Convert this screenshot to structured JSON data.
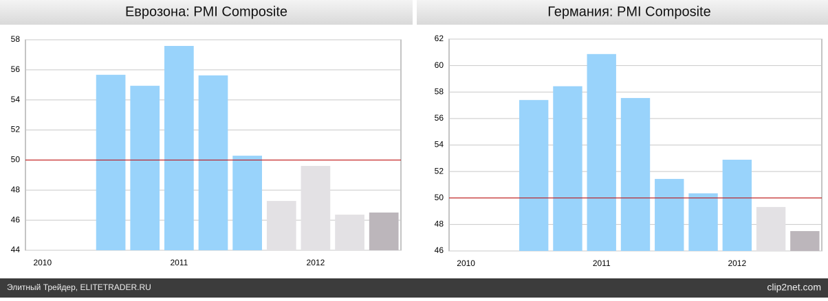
{
  "chart_data": [
    {
      "type": "bar",
      "title": "Еврозона: PMI Composite",
      "categories": [
        "2010",
        null,
        null,
        null,
        "2011",
        null,
        null,
        null,
        "2012",
        null,
        null
      ],
      "values": [
        null,
        null,
        55.67,
        54.94,
        57.59,
        55.63,
        50.29,
        47.28,
        49.61,
        46.37,
        46.51
      ],
      "colors": [
        "#99d3fb",
        "#99d3fb",
        "#99d3fb",
        "#99d3fb",
        "#99d3fb",
        "#99d3fb",
        "#99d3fb",
        "#e3e1e4",
        "#e3e1e4",
        "#e3e1e4",
        "#bcb6bb"
      ],
      "ylim": [
        44,
        58
      ],
      "yticks": [
        44,
        46,
        48,
        50,
        52,
        54,
        56,
        58
      ],
      "grid": true,
      "reference_line": {
        "value": 50,
        "color": "#c00000"
      }
    },
    {
      "type": "bar",
      "title": "Германия: PMI Composite",
      "categories": [
        "2010",
        null,
        null,
        null,
        "2011",
        null,
        null,
        null,
        "2012",
        null,
        null
      ],
      "values": [
        null,
        null,
        57.4,
        58.44,
        60.87,
        57.55,
        51.44,
        50.35,
        52.89,
        49.32,
        47.5
      ],
      "colors": [
        "#99d3fb",
        "#99d3fb",
        "#99d3fb",
        "#99d3fb",
        "#99d3fb",
        "#99d3fb",
        "#99d3fb",
        "#99d3fb",
        "#99d3fb",
        "#e3e1e4",
        "#bcb6bb"
      ],
      "ylim": [
        46,
        62
      ],
      "yticks": [
        46,
        48,
        50,
        52,
        54,
        56,
        58,
        60,
        62
      ],
      "grid": true,
      "reference_line": {
        "value": 50,
        "color": "#c00000"
      }
    }
  ],
  "footer": {
    "source": "Элитный Трейдер, ELITETRADER.RU",
    "logo": "clip2net.com"
  }
}
